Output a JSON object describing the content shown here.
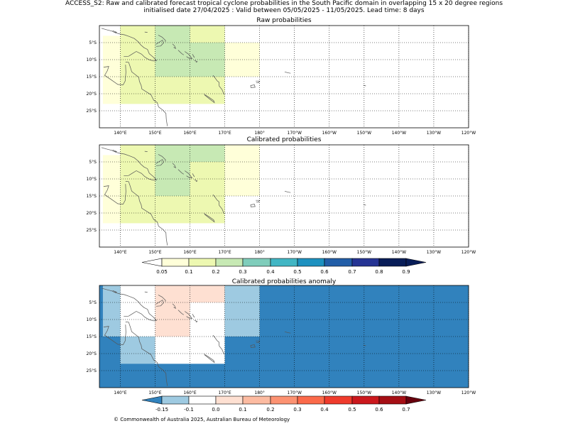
{
  "header": {
    "line1": "ACCESS_S2: Raw and calibrated forecast tropical cyclone probabilities in the South Pacific domain in overlapping 15 x 20 degree regions",
    "line2": "initialised date 27/04/2025 :  Valid between 05/05/2025 - 11/05/2025. Lead time: 8 days"
  },
  "panels": [
    {
      "id": "raw",
      "title": "Raw probabilities",
      "cells": [
        {
          "lon0": 135,
          "lon1": 140,
          "lat0": -23,
          "lat1": -3,
          "color": "#ffffd9"
        },
        {
          "lon0": 140,
          "lon1": 150,
          "lat0": -23,
          "lat1": 0,
          "color": "#edf8b1"
        },
        {
          "lon0": 150,
          "lon1": 160,
          "lat0": -23,
          "lat1": -15,
          "color": "#edf8b1"
        },
        {
          "lon0": 150,
          "lon1": 160,
          "lat0": -15,
          "lat1": 0,
          "color": "#c7e9b4"
        },
        {
          "lon0": 160,
          "lon1": 170,
          "lat0": -23,
          "lat1": -15,
          "color": "#edf8b1"
        },
        {
          "lon0": 160,
          "lon1": 170,
          "lat0": -15,
          "lat1": -5,
          "color": "#c7e9b4"
        },
        {
          "lon0": 160,
          "lon1": 170,
          "lat0": -5,
          "lat1": 0,
          "color": "#edf8b1"
        },
        {
          "lon0": 170,
          "lon1": 180,
          "lat0": -15,
          "lat1": -5,
          "color": "#ffffd9"
        }
      ]
    },
    {
      "id": "calibrated",
      "title": "Calibrated probabilities",
      "cells": [
        {
          "lon0": 135,
          "lon1": 140,
          "lat0": -23,
          "lat1": -3,
          "color": "#ffffd9"
        },
        {
          "lon0": 140,
          "lon1": 150,
          "lat0": -23,
          "lat1": 0,
          "color": "#edf8b1"
        },
        {
          "lon0": 150,
          "lon1": 160,
          "lat0": -23,
          "lat1": -15,
          "color": "#edf8b1"
        },
        {
          "lon0": 150,
          "lon1": 160,
          "lat0": -15,
          "lat1": -5,
          "color": "#c7e9b4"
        },
        {
          "lon0": 150,
          "lon1": 170,
          "lat0": -5,
          "lat1": 0,
          "color": "#c7e9b4"
        },
        {
          "lon0": 160,
          "lon1": 170,
          "lat0": -23,
          "lat1": -5,
          "color": "#edf8b1"
        },
        {
          "lon0": 170,
          "lon1": 180,
          "lat0": -15,
          "lat1": 0,
          "color": "#ffffd9"
        }
      ]
    },
    {
      "id": "anomaly",
      "title": "Calibrated probabilities anomaly",
      "background": "#3182bd",
      "cells": [
        {
          "lon0": 140,
          "lon1": 150,
          "lat0": -23,
          "lat1": -15,
          "color": "#9ecae1"
        },
        {
          "lon0": 135,
          "lon1": 140,
          "lat0": -15,
          "lat1": 0,
          "color": "#9ecae1"
        },
        {
          "lon0": 140,
          "lon1": 150,
          "lat0": -15,
          "lat1": 0,
          "color": "#ffffff"
        },
        {
          "lon0": 150,
          "lon1": 170,
          "lat0": -23,
          "lat1": -15,
          "color": "#ffffff"
        },
        {
          "lon0": 150,
          "lon1": 160,
          "lat0": -15,
          "lat1": 0,
          "color": "#fee0d2"
        },
        {
          "lon0": 160,
          "lon1": 170,
          "lat0": -15,
          "lat1": -5,
          "color": "#ffffff"
        },
        {
          "lon0": 160,
          "lon1": 170,
          "lat0": -5,
          "lat1": 0,
          "color": "#fee0d2"
        },
        {
          "lon0": 170,
          "lon1": 180,
          "lat0": -15,
          "lat1": 0,
          "color": "#9ecae1"
        }
      ]
    }
  ],
  "map": {
    "lon_range": [
      134,
      240
    ],
    "lat_range": [
      -30,
      0
    ],
    "xtick_values": [
      140,
      150,
      160,
      170,
      180,
      190,
      200,
      210,
      220,
      230,
      240
    ],
    "xtick_labels": [
      "140°E",
      "150°E",
      "160°E",
      "170°E",
      "180°",
      "170°W",
      "160°W",
      "150°W",
      "140°W",
      "130°W",
      "120°W"
    ],
    "ytick_values": [
      -5,
      -10,
      -15,
      -20,
      -25
    ],
    "ytick_labels": [
      "5°S",
      "10°S",
      "15°S",
      "20°S",
      "25°S"
    ],
    "grid": true
  },
  "colorbar_prob": {
    "labels": [
      "0.05",
      "0.1",
      "0.2",
      "0.3",
      "0.4",
      "0.5",
      "0.6",
      "0.7",
      "0.8",
      "0.9"
    ],
    "colors": [
      "#ffffd9",
      "#edf8b1",
      "#c7e9b4",
      "#7fcdbb",
      "#41b6c4",
      "#1d91c0",
      "#225ea8",
      "#253494",
      "#081d58"
    ],
    "under_color": "#ffffff",
    "over_color": "#081d58"
  },
  "colorbar_anom": {
    "labels": [
      "-0.15",
      "-0.1",
      "0.0",
      "0.1",
      "0.2",
      "0.3",
      "0.4",
      "0.5",
      "0.6",
      "0.7"
    ],
    "colors": [
      "#9ecae1",
      "#ffffff",
      "#fee0d2",
      "#fcbba1",
      "#fc9272",
      "#fb6a4a",
      "#ef3b2c",
      "#cb181d",
      "#a50f15"
    ],
    "under_color": "#3182bd",
    "over_color": "#67000d"
  },
  "footer": "© Commonwealth of Australia 2025, Australian Bureau of Meteorology"
}
